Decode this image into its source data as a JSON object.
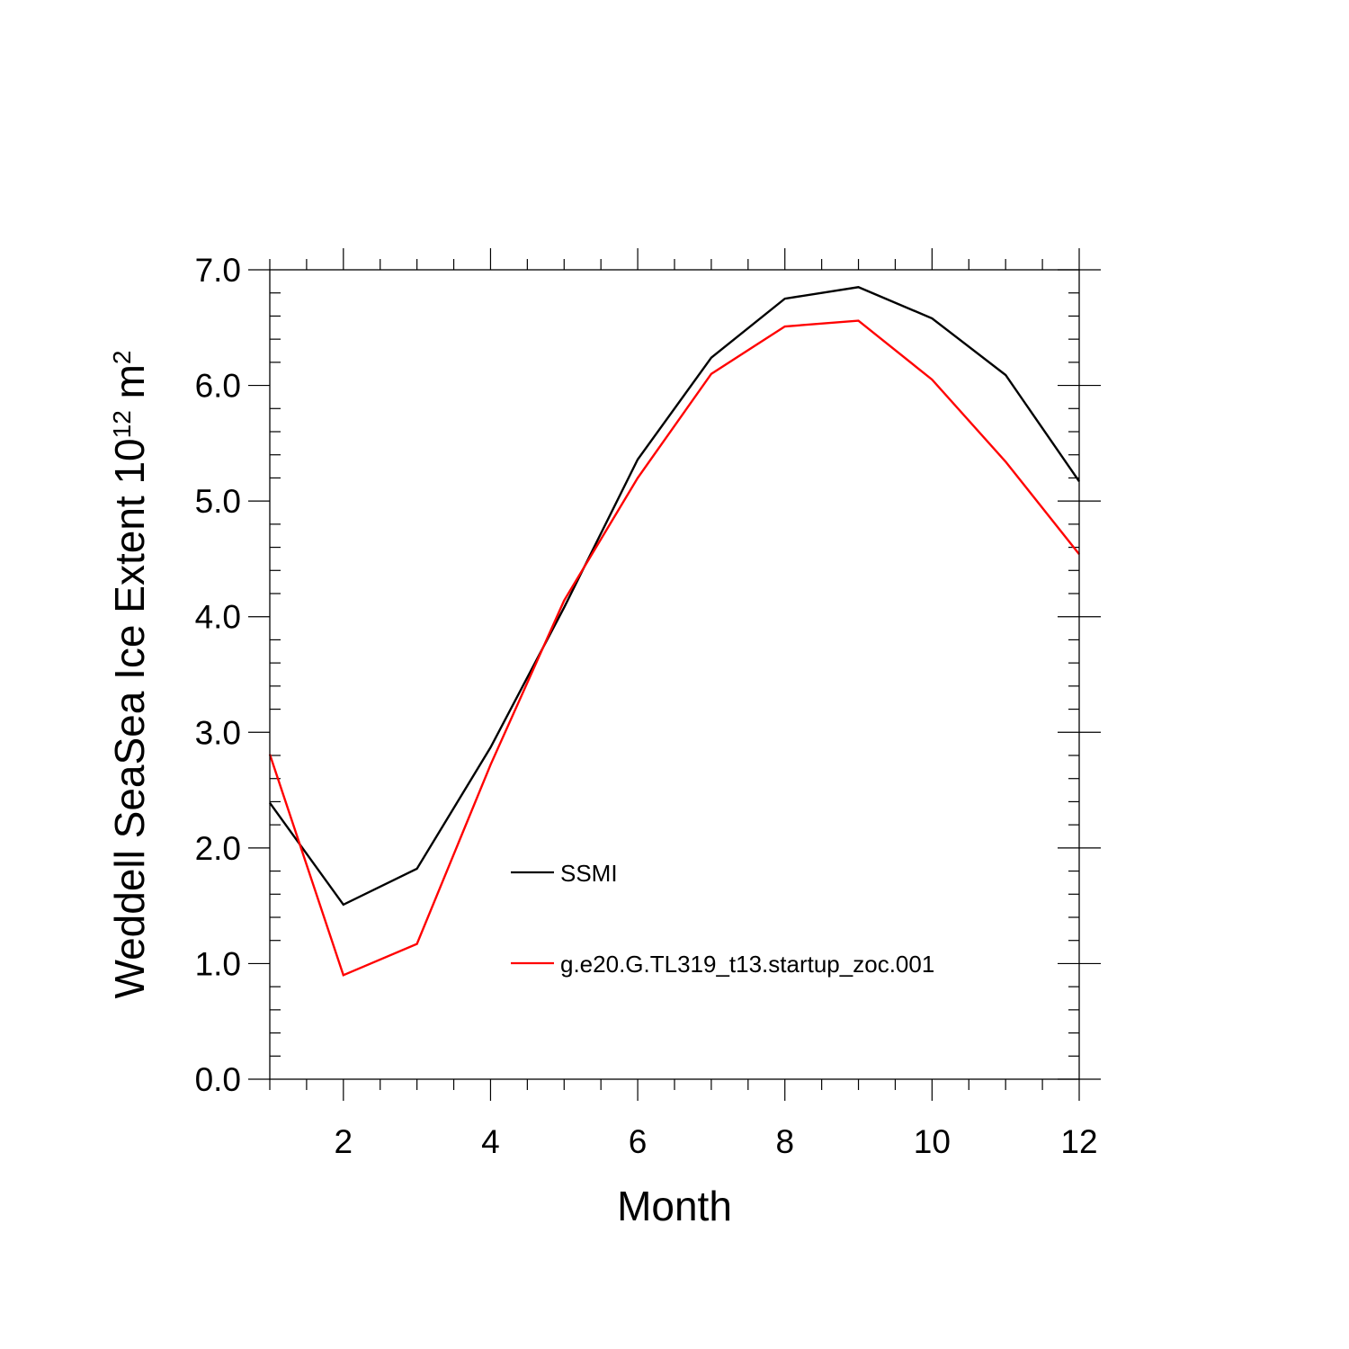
{
  "chart_data": {
    "type": "line",
    "xlabel": "Month",
    "ylabel": {
      "text": "Weddell SeaSea Ice Extent 10",
      "superscript_1": "12",
      "unit": " m",
      "superscript_2": "2"
    },
    "xlim": [
      1,
      12
    ],
    "ylim": [
      0,
      7
    ],
    "x_ticks": [
      2,
      4,
      6,
      8,
      10,
      12
    ],
    "x_tick_labels": [
      "2",
      "4",
      "6",
      "8",
      "10",
      "12"
    ],
    "y_ticks": [
      0,
      1,
      2,
      3,
      4,
      5,
      6,
      7
    ],
    "y_tick_labels": [
      "0.0",
      "1.0",
      "2.0",
      "3.0",
      "4.0",
      "5.0",
      "6.0",
      "7.0"
    ],
    "x": [
      1,
      2,
      3,
      4,
      5,
      6,
      7,
      8,
      9,
      10,
      11,
      12
    ],
    "series": [
      {
        "name": "SSMI",
        "color": "#000000",
        "values": [
          2.39,
          1.51,
          1.82,
          2.87,
          4.08,
          5.36,
          6.24,
          6.75,
          6.85,
          6.58,
          6.09,
          5.17
        ]
      },
      {
        "name": "g.e20.G.TL319_t13.startup_zoc.001",
        "color": "#ff0000",
        "values": [
          2.81,
          0.9,
          1.17,
          2.72,
          4.14,
          5.2,
          6.1,
          6.51,
          6.56,
          6.05,
          5.34,
          4.54
        ]
      }
    ],
    "legend_position": "center",
    "grid": false
  }
}
